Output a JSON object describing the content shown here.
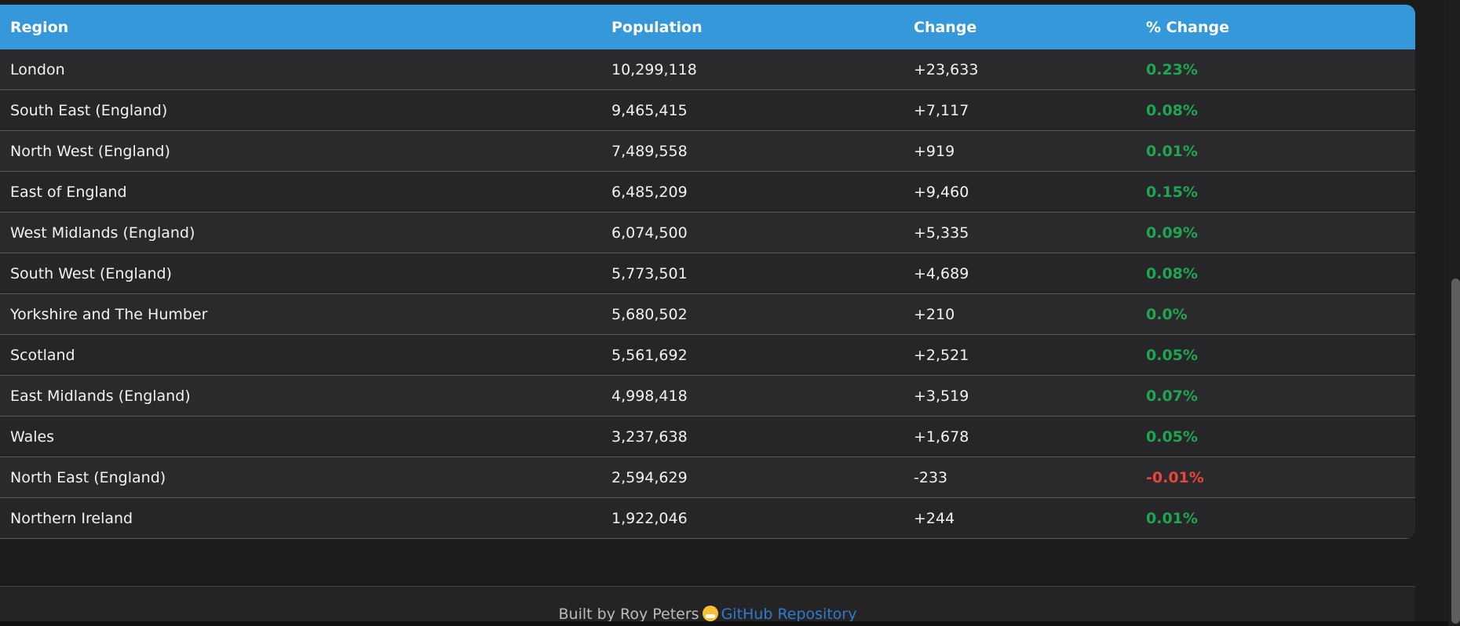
{
  "table": {
    "headers": [
      "Region",
      "Population",
      "Change",
      "% Change"
    ],
    "rows": [
      {
        "region": "London",
        "population": "10,299,118",
        "change": "+23,633",
        "pct": "0.23%",
        "trend": "pos"
      },
      {
        "region": "South East (England)",
        "population": "9,465,415",
        "change": "+7,117",
        "pct": "0.08%",
        "trend": "pos"
      },
      {
        "region": "North West (England)",
        "population": "7,489,558",
        "change": "+919",
        "pct": "0.01%",
        "trend": "pos"
      },
      {
        "region": "East of England",
        "population": "6,485,209",
        "change": "+9,460",
        "pct": "0.15%",
        "trend": "pos"
      },
      {
        "region": "West Midlands (England)",
        "population": "6,074,500",
        "change": "+5,335",
        "pct": "0.09%",
        "trend": "pos"
      },
      {
        "region": "South West (England)",
        "population": "5,773,501",
        "change": "+4,689",
        "pct": "0.08%",
        "trend": "pos"
      },
      {
        "region": "Yorkshire and The Humber",
        "population": "5,680,502",
        "change": "+210",
        "pct": "0.0%",
        "trend": "pos"
      },
      {
        "region": "Scotland",
        "population": "5,561,692",
        "change": "+2,521",
        "pct": "0.05%",
        "trend": "pos"
      },
      {
        "region": "East Midlands (England)",
        "population": "4,998,418",
        "change": "+3,519",
        "pct": "0.07%",
        "trend": "pos"
      },
      {
        "region": "Wales",
        "population": "3,237,638",
        "change": "+1,678",
        "pct": "0.05%",
        "trend": "pos"
      },
      {
        "region": "North East (England)",
        "population": "2,594,629",
        "change": "-233",
        "pct": "-0.01%",
        "trend": "neg"
      },
      {
        "region": "Northern Ireland",
        "population": "1,922,046",
        "change": "+244",
        "pct": "0.01%",
        "trend": "pos"
      }
    ]
  },
  "footer": {
    "built_by": "Built by Roy Peters",
    "emoji_icon": "grinning-face-icon",
    "link_label": "GitHub Repository"
  },
  "colors": {
    "header_bg": "#3498db",
    "positive": "#1ea650",
    "negative": "#e8453c",
    "link": "#2f79d4"
  }
}
